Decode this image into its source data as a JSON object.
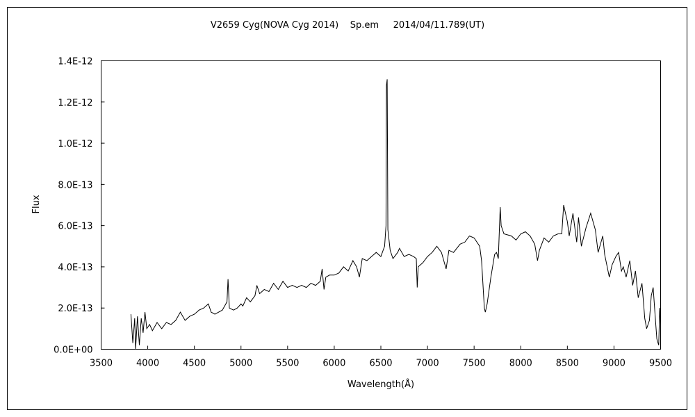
{
  "chart_data": {
    "type": "line",
    "title": "V2659 Cyg(NOVA Cyg 2014)    Sp.em     2014/04/11.789(UT)",
    "xlabel": "Wavelength(Å)",
    "ylabel": "Flux",
    "xlim": [
      3500,
      9500
    ],
    "ylim": [
      0,
      1.4e-12
    ],
    "grid": false,
    "x_ticks": [
      "3500",
      "4000",
      "4500",
      "5000",
      "5500",
      "6000",
      "6500",
      "7000",
      "7500",
      "8000",
      "8500",
      "9000",
      "9500"
    ],
    "y_ticks": [
      "0.0E+00",
      "2.0E-13",
      "4.0E-13",
      "6.0E-13",
      "8.0E-13",
      "1.0E-12",
      "1.2E-12",
      "1.4E-12"
    ],
    "series": [
      {
        "name": "spectrum",
        "unit_scale": 1e-13,
        "x": [
          3820,
          3840,
          3860,
          3870,
          3890,
          3910,
          3930,
          3950,
          3970,
          3990,
          4020,
          4050,
          4100,
          4150,
          4200,
          4250,
          4300,
          4350,
          4400,
          4450,
          4500,
          4550,
          4600,
          4650,
          4680,
          4720,
          4800,
          4850,
          4861,
          4875,
          4920,
          4960,
          5000,
          5020,
          5060,
          5100,
          5150,
          5170,
          5200,
          5250,
          5300,
          5350,
          5400,
          5450,
          5500,
          5550,
          5600,
          5650,
          5700,
          5750,
          5800,
          5850,
          5870,
          5890,
          5910,
          5950,
          6000,
          6050,
          6100,
          6150,
          6200,
          6240,
          6270,
          6300,
          6350,
          6400,
          6450,
          6500,
          6540,
          6555,
          6560,
          6568,
          6575,
          6600,
          6630,
          6680,
          6700,
          6750,
          6800,
          6850,
          6880,
          6890,
          6900,
          6950,
          7000,
          7050,
          7100,
          7150,
          7200,
          7230,
          7280,
          7350,
          7400,
          7450,
          7500,
          7560,
          7580,
          7610,
          7620,
          7640,
          7680,
          7720,
          7740,
          7760,
          7780,
          7790,
          7820,
          7900,
          7950,
          8000,
          8050,
          8100,
          8150,
          8180,
          8200,
          8250,
          8300,
          8350,
          8400,
          8440,
          8460,
          8500,
          8520,
          8560,
          8600,
          8620,
          8650,
          8700,
          8750,
          8800,
          8830,
          8880,
          8900,
          8950,
          8980,
          9020,
          9050,
          9080,
          9100,
          9130,
          9170,
          9200,
          9230,
          9260,
          9300,
          9330,
          9350,
          9380,
          9400,
          9420,
          9440,
          9460,
          9480,
          9490,
          9500
        ],
        "values": [
          1.7,
          0.3,
          1.5,
          0.0,
          1.6,
          0.2,
          1.5,
          0.8,
          1.8,
          1.0,
          1.2,
          0.9,
          1.3,
          1.0,
          1.3,
          1.2,
          1.4,
          1.8,
          1.4,
          1.6,
          1.7,
          1.9,
          2.0,
          2.2,
          1.8,
          1.7,
          1.9,
          2.3,
          3.4,
          2.0,
          1.9,
          2.0,
          2.2,
          2.1,
          2.5,
          2.3,
          2.6,
          3.1,
          2.7,
          2.9,
          2.8,
          3.2,
          2.9,
          3.3,
          3.0,
          3.1,
          3.0,
          3.1,
          3.0,
          3.2,
          3.1,
          3.3,
          3.9,
          2.9,
          3.5,
          3.6,
          3.6,
          3.7,
          4.0,
          3.8,
          4.3,
          4.0,
          3.5,
          4.4,
          4.3,
          4.5,
          4.7,
          4.5,
          5.0,
          6.0,
          12.8,
          13.1,
          5.8,
          4.8,
          4.4,
          4.7,
          4.9,
          4.5,
          4.6,
          4.5,
          4.4,
          3.0,
          4.0,
          4.2,
          4.5,
          4.7,
          5.0,
          4.7,
          3.9,
          4.8,
          4.7,
          5.1,
          5.2,
          5.5,
          5.4,
          5.0,
          4.3,
          2.0,
          1.8,
          2.2,
          3.5,
          4.6,
          4.7,
          4.4,
          6.9,
          6.0,
          5.6,
          5.5,
          5.3,
          5.6,
          5.7,
          5.5,
          5.1,
          4.3,
          4.8,
          5.4,
          5.2,
          5.5,
          5.6,
          5.6,
          7.0,
          6.2,
          5.5,
          6.6,
          5.2,
          6.4,
          5.0,
          5.9,
          6.6,
          5.8,
          4.7,
          5.5,
          4.6,
          3.5,
          4.1,
          4.5,
          4.7,
          3.8,
          4.0,
          3.5,
          4.3,
          3.1,
          3.8,
          2.5,
          3.2,
          1.5,
          1.0,
          1.4,
          2.6,
          3.0,
          1.7,
          0.5,
          0.2,
          2.0,
          1.2
        ]
      }
    ]
  }
}
